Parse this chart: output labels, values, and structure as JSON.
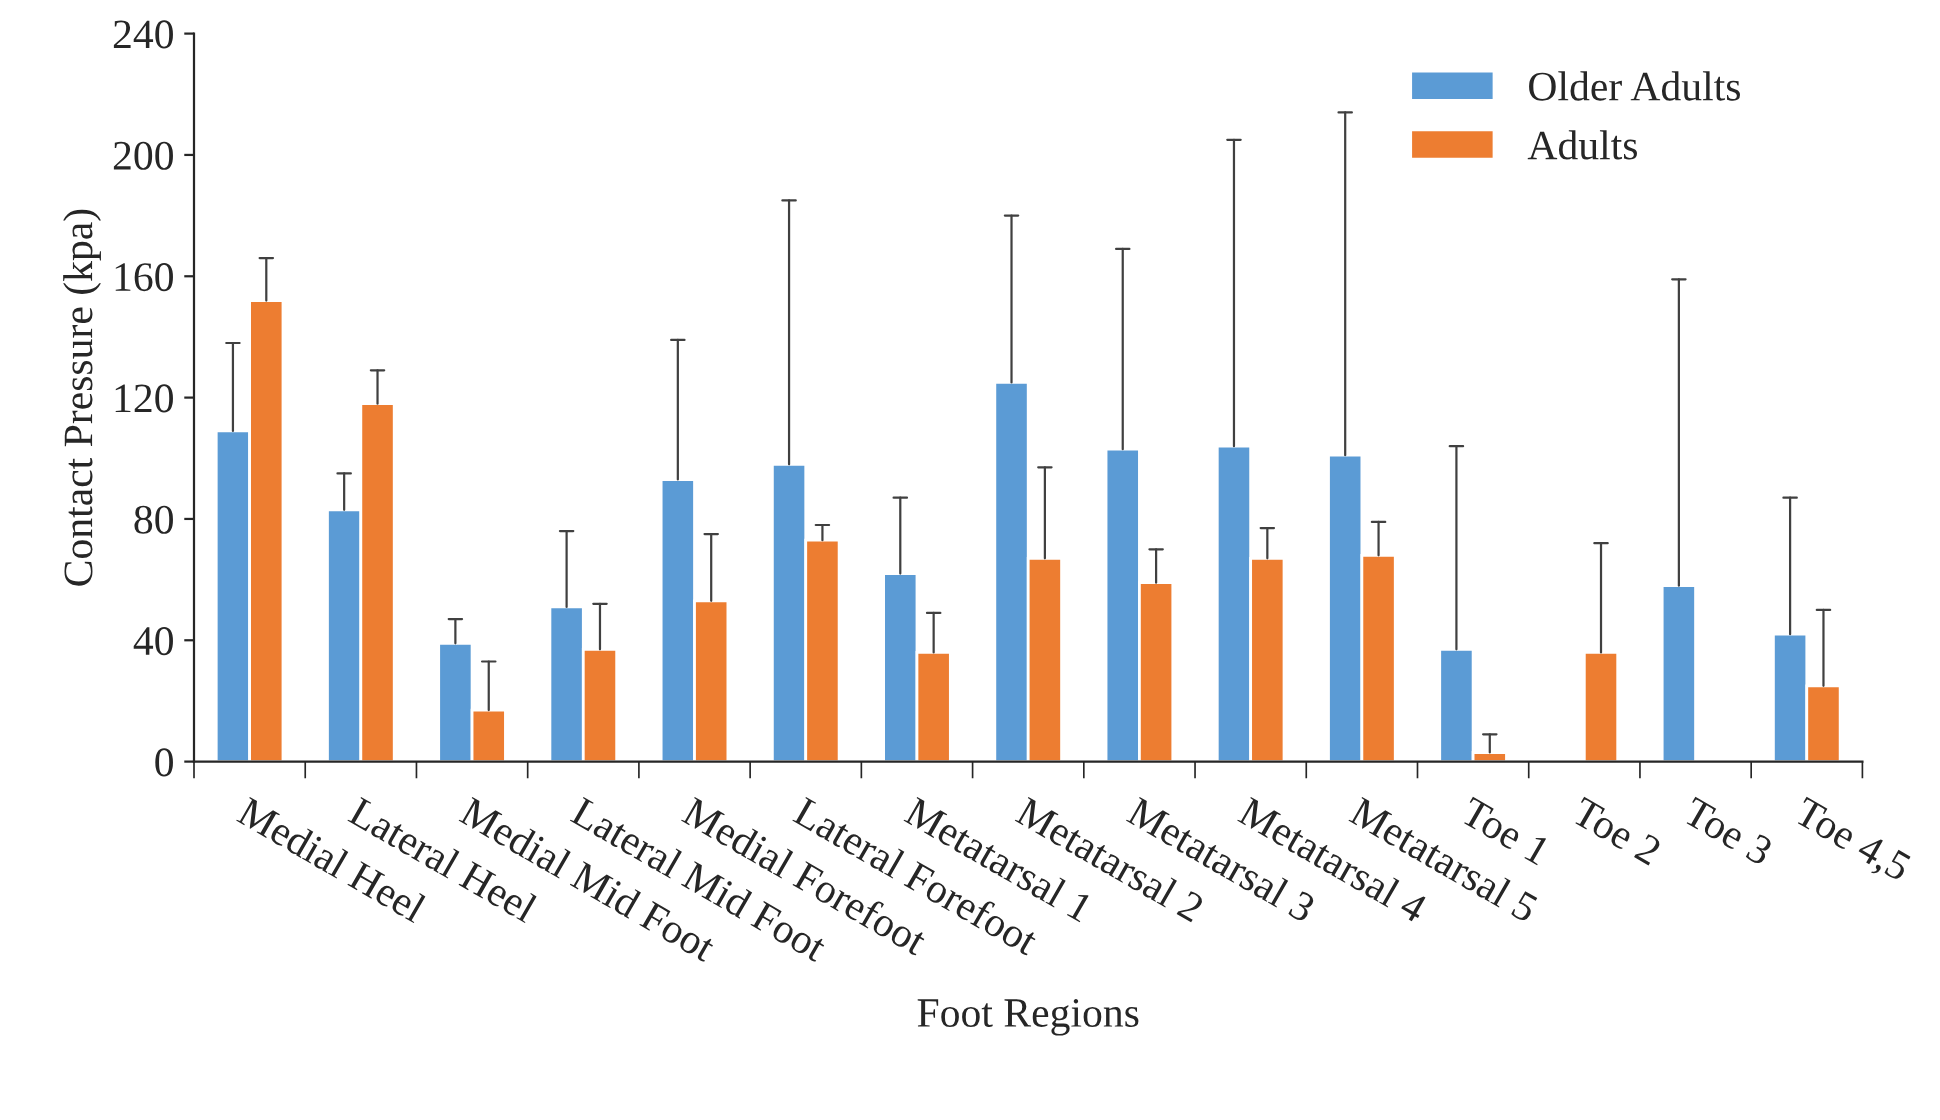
{
  "chart_data": {
    "type": "bar",
    "xlabel": "Foot Regions",
    "ylabel": "Contact Pressure (kpa)",
    "categories": [
      "Medial Heel",
      "Lateral Heel",
      "Medial Mid Foot",
      "Lateral Mid Foot",
      "Medial Forefoot",
      "Lateral Forefoot",
      "Metatarsal 1",
      "Metatarsal 2",
      "Metatarsal 3",
      "Metatarsal 4",
      "Metatarsal 5",
      "Toe 1",
      "Toe 2",
      "Toe 3",
      "Toe 4,5"
    ],
    "series": [
      {
        "name": "Older Adults",
        "color": "#5b9bd5",
        "values": [
          109,
          83,
          39,
          51,
          93,
          98,
          62,
          125,
          103,
          104,
          101,
          37,
          null,
          58,
          42
        ],
        "errors": [
          [
            109,
            138
          ],
          [
            83,
            95
          ],
          [
            39,
            47
          ],
          [
            51,
            76
          ],
          [
            93,
            139
          ],
          [
            98,
            185
          ],
          [
            62,
            87
          ],
          [
            125,
            180
          ],
          [
            103,
            169
          ],
          [
            104,
            205
          ],
          [
            101,
            214
          ],
          [
            37,
            104
          ],
          null,
          [
            58,
            159
          ],
          [
            42,
            87
          ]
        ]
      },
      {
        "name": "Adults",
        "color": "#ed7d31",
        "values": [
          152,
          118,
          17,
          37,
          53,
          73,
          36,
          67,
          59,
          67,
          68,
          3,
          36,
          null,
          25
        ],
        "errors": [
          [
            152,
            166
          ],
          [
            118,
            129
          ],
          [
            17,
            33
          ],
          [
            37,
            52
          ],
          [
            53,
            75
          ],
          [
            73,
            78
          ],
          [
            36,
            49
          ],
          [
            67,
            97
          ],
          [
            59,
            70
          ],
          [
            67,
            77
          ],
          [
            68,
            79
          ],
          [
            3,
            9
          ],
          [
            36,
            72
          ],
          null,
          [
            25,
            50
          ]
        ]
      }
    ],
    "ylim": [
      0,
      240
    ],
    "yticks": [
      0,
      40,
      80,
      120,
      160,
      200,
      240
    ],
    "legend": "top right",
    "grid": false
  }
}
